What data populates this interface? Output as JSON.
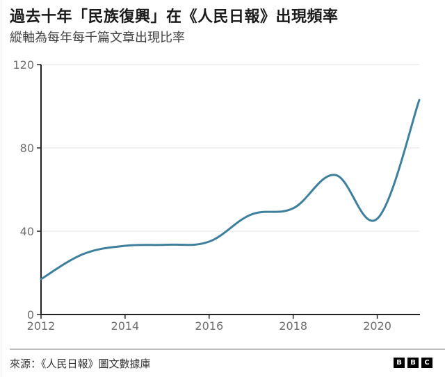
{
  "header": {
    "title": "過去十年「民族復興」在《人民日報》出現頻率",
    "subtitle": "縱軸為每年每千篇文章出現比率"
  },
  "footer": {
    "source": "來源：《人民日報》圖文數據庫",
    "logo": [
      "B",
      "B",
      "C"
    ]
  },
  "colors": {
    "line": "#3d7f9c",
    "axis": "#222222",
    "grid": "#e6e6e6",
    "tick_label": "#6e6e6e"
  },
  "chart_data": {
    "type": "line",
    "title": "過去十年「民族復興」在《人民日報》出現頻率",
    "subtitle": "縱軸為每年每千篇文章出現比率",
    "xlabel": "",
    "ylabel": "每年每千篇文章出現比率",
    "x": [
      2012,
      2013,
      2014,
      2015,
      2016,
      2017,
      2018,
      2019,
      2020,
      2021
    ],
    "series": [
      {
        "name": "民族復興",
        "values": [
          17,
          29,
          33,
          33.5,
          35,
          48,
          51,
          67,
          46,
          103
        ]
      }
    ],
    "xticks": [
      "2012",
      "2014",
      "2016",
      "2018",
      "2020"
    ],
    "yticks": [
      "0",
      "40",
      "80",
      "120"
    ],
    "xlim": [
      2012,
      2021
    ],
    "ylim": [
      0,
      120
    ],
    "grid": "horizontal",
    "legend": "none",
    "source": "來源：《人民日報》圖文數據庫"
  }
}
